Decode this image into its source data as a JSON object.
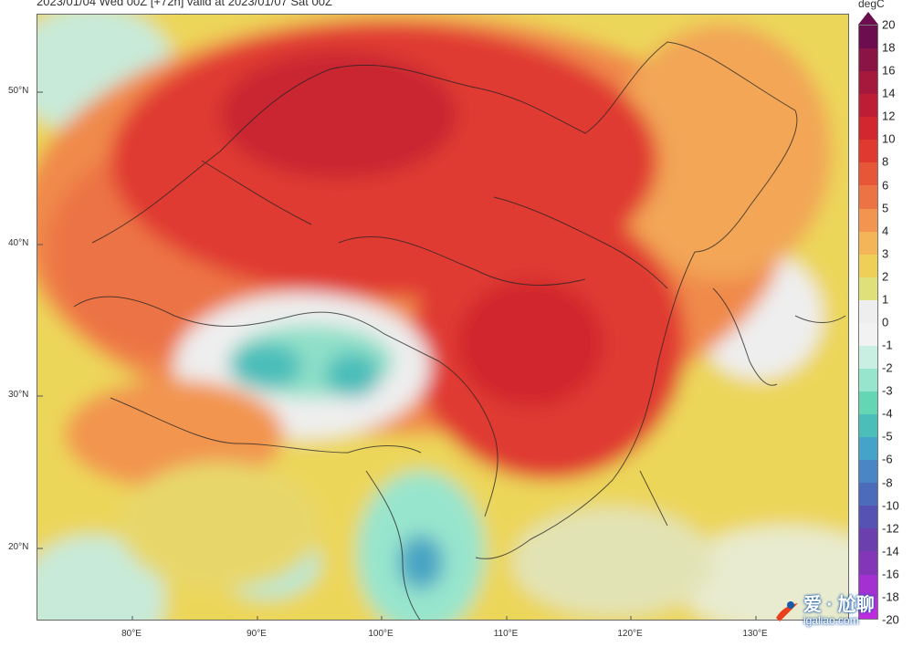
{
  "header": {
    "title": "2023/01/04 Wed 00Z [+72h] valid at 2023/01/07 Sat 00Z"
  },
  "axes": {
    "lat_labels": [
      "50°N",
      "40°N",
      "30°N",
      "20°N"
    ],
    "lon_labels": [
      "80°E",
      "90°E",
      "100°E",
      "110°E",
      "120°E",
      "130°E"
    ]
  },
  "colorbar": {
    "unit": "degC",
    "ticks": [
      "20",
      "18",
      "16",
      "14",
      "12",
      "10",
      "8",
      "6",
      "5",
      "4",
      "3",
      "2",
      "1",
      "0",
      "-1",
      "-2",
      "-3",
      "-4",
      "-5",
      "-6",
      "-8",
      "-10",
      "-12",
      "-14",
      "-16",
      "-18",
      "-20"
    ],
    "colors": [
      "#6b0d4e",
      "#8a1545",
      "#a5193d",
      "#bd1e35",
      "#d2272f",
      "#e03a30",
      "#e65637",
      "#ec7344",
      "#f29550",
      "#f4b558",
      "#eed058",
      "#e0e07a",
      "#eeeeee",
      "#f2f2f2",
      "#c8efe2",
      "#98e5cd",
      "#64d6b3",
      "#4bbeba",
      "#45a2c9",
      "#4a86c6",
      "#4c6cbb",
      "#5652b4",
      "#6b3fae",
      "#8336b8",
      "#a530d1",
      "#c12be0"
    ]
  },
  "watermark": {
    "text_cn": "爱 · 尬聊",
    "url": "igaliao.com"
  }
}
